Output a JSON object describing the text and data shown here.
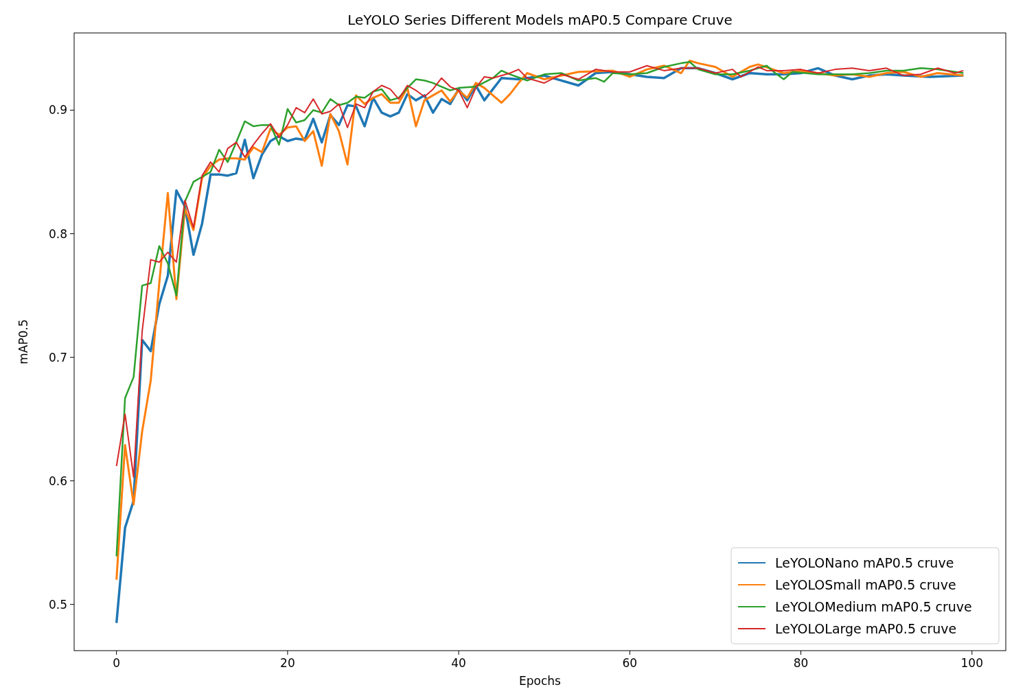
{
  "chart_data": {
    "type": "line",
    "title": "LeYOLO Series Different Models mAP0.5 Compare Cruve",
    "xlabel": "Epochs",
    "ylabel": "mAP0.5",
    "xlim": [
      -4.95,
      103.95
    ],
    "ylim": [
      0.4626,
      0.9625
    ],
    "xticks": [
      0,
      20,
      40,
      60,
      80,
      100
    ],
    "yticks": [
      0.5,
      0.6,
      0.7,
      0.8,
      0.9
    ],
    "grid": false,
    "legend": "bottom right",
    "marker": "none",
    "line_style": "solid",
    "series": [
      {
        "name": "LeYOLONano mAP0.5 cruve",
        "color": "#1f77b4",
        "x": [
          0,
          1,
          2,
          3,
          4,
          5,
          6,
          7,
          8,
          9,
          10,
          11,
          12,
          13,
          14,
          15,
          16,
          17,
          18,
          19,
          20,
          21,
          22,
          23,
          24,
          25,
          26,
          27,
          28,
          29,
          30,
          31,
          32,
          33,
          34,
          35,
          36,
          37,
          38,
          39,
          40,
          41,
          42,
          43,
          44,
          45,
          47,
          50,
          54,
          56,
          58,
          60,
          62,
          64,
          66,
          68,
          70,
          72,
          74,
          76,
          78,
          80,
          82,
          84,
          86,
          88,
          90,
          92,
          95,
          99
        ],
        "values": [
          0.485,
          0.562,
          0.584,
          0.714,
          0.705,
          0.743,
          0.766,
          0.835,
          0.822,
          0.783,
          0.808,
          0.848,
          0.848,
          0.847,
          0.849,
          0.876,
          0.845,
          0.864,
          0.875,
          0.879,
          0.875,
          0.877,
          0.876,
          0.893,
          0.874,
          0.896,
          0.888,
          0.904,
          0.903,
          0.887,
          0.91,
          0.898,
          0.895,
          0.898,
          0.913,
          0.908,
          0.912,
          0.898,
          0.909,
          0.905,
          0.917,
          0.908,
          0.92,
          0.908,
          0.917,
          0.926,
          0.925,
          0.928,
          0.92,
          0.93,
          0.931,
          0.929,
          0.927,
          0.926,
          0.934,
          0.934,
          0.93,
          0.925,
          0.93,
          0.929,
          0.929,
          0.93,
          0.934,
          0.928,
          0.925,
          0.928,
          0.929,
          0.928,
          0.927,
          0.928
        ]
      },
      {
        "name": "LeYOLOSmall mAP0.5 cruve",
        "color": "#ff7f0e",
        "x": [
          0,
          1,
          2,
          3,
          4,
          5,
          6,
          7,
          8,
          9,
          10,
          11,
          12,
          13,
          14,
          15,
          16,
          17,
          18,
          19,
          20,
          21,
          22,
          23,
          24,
          25,
          26,
          27,
          28,
          29,
          30,
          31,
          32,
          33,
          34,
          35,
          36,
          37,
          38,
          39,
          40,
          41,
          42,
          43,
          45,
          46,
          47,
          48,
          50,
          54,
          58,
          60,
          62,
          64,
          66,
          67,
          68,
          70,
          72,
          74,
          75,
          78,
          80,
          84,
          86,
          88,
          90,
          92,
          94,
          96,
          99
        ],
        "values": [
          0.52,
          0.629,
          0.581,
          0.64,
          0.681,
          0.76,
          0.833,
          0.747,
          0.82,
          0.803,
          0.845,
          0.855,
          0.86,
          0.861,
          0.861,
          0.86,
          0.87,
          0.866,
          0.885,
          0.88,
          0.886,
          0.887,
          0.875,
          0.883,
          0.855,
          0.897,
          0.883,
          0.856,
          0.912,
          0.905,
          0.91,
          0.913,
          0.906,
          0.906,
          0.918,
          0.887,
          0.908,
          0.912,
          0.916,
          0.907,
          0.916,
          0.91,
          0.922,
          0.918,
          0.906,
          0.913,
          0.922,
          0.93,
          0.925,
          0.931,
          0.932,
          0.927,
          0.933,
          0.936,
          0.93,
          0.94,
          0.938,
          0.935,
          0.927,
          0.935,
          0.937,
          0.93,
          0.932,
          0.928,
          0.929,
          0.927,
          0.93,
          0.931,
          0.927,
          0.93,
          0.928
        ]
      },
      {
        "name": "LeYOLOMedium mAP0.5 cruve",
        "color": "#2ca02c",
        "x": [
          0,
          1,
          2,
          3,
          4,
          5,
          6,
          7,
          8,
          9,
          10,
          11,
          12,
          13,
          14,
          15,
          16,
          17,
          18,
          19,
          20,
          21,
          22,
          23,
          24,
          25,
          26,
          27,
          28,
          29,
          30,
          31,
          32,
          33,
          34,
          35,
          36,
          37,
          38,
          39,
          40,
          42,
          44,
          45,
          46,
          48,
          50,
          52,
          54,
          56,
          57,
          58,
          60,
          62,
          64,
          66,
          67,
          68,
          70,
          72,
          74,
          76,
          77,
          78,
          79,
          82,
          86,
          88,
          90,
          92,
          94,
          96,
          99
        ],
        "values": [
          0.539,
          0.667,
          0.684,
          0.758,
          0.76,
          0.79,
          0.776,
          0.75,
          0.826,
          0.842,
          0.846,
          0.85,
          0.868,
          0.858,
          0.874,
          0.891,
          0.887,
          0.888,
          0.888,
          0.872,
          0.901,
          0.89,
          0.892,
          0.9,
          0.898,
          0.909,
          0.904,
          0.906,
          0.911,
          0.91,
          0.915,
          0.917,
          0.908,
          0.91,
          0.918,
          0.925,
          0.924,
          0.922,
          0.919,
          0.916,
          0.918,
          0.919,
          0.926,
          0.932,
          0.929,
          0.924,
          0.929,
          0.93,
          0.924,
          0.926,
          0.923,
          0.93,
          0.929,
          0.93,
          0.935,
          0.938,
          0.939,
          0.933,
          0.929,
          0.929,
          0.932,
          0.936,
          0.93,
          0.925,
          0.931,
          0.929,
          0.929,
          0.93,
          0.932,
          0.932,
          0.934,
          0.933,
          0.93
        ]
      },
      {
        "name": "LeYOLOLarge mAP0.5 cruve",
        "color": "#d62728",
        "x": [
          0,
          1,
          2,
          3,
          4,
          5,
          6,
          7,
          8,
          9,
          10,
          11,
          12,
          13,
          14,
          15,
          16,
          17,
          18,
          19,
          20,
          21,
          22,
          23,
          24,
          25,
          26,
          27,
          28,
          29,
          30,
          31,
          32,
          33,
          34,
          35,
          36,
          37,
          38,
          39,
          40,
          41,
          42,
          43,
          44,
          46,
          47,
          48,
          50,
          52,
          54,
          56,
          58,
          60,
          62,
          64,
          66,
          68,
          70,
          72,
          73,
          75,
          76,
          78,
          80,
          82,
          84,
          86,
          88,
          90,
          92,
          94,
          96,
          98,
          99
        ],
        "values": [
          0.612,
          0.654,
          0.603,
          0.721,
          0.779,
          0.777,
          0.785,
          0.777,
          0.827,
          0.805,
          0.847,
          0.858,
          0.85,
          0.869,
          0.874,
          0.862,
          0.872,
          0.881,
          0.889,
          0.878,
          0.888,
          0.902,
          0.898,
          0.909,
          0.897,
          0.899,
          0.905,
          0.886,
          0.905,
          0.902,
          0.915,
          0.92,
          0.917,
          0.909,
          0.92,
          0.916,
          0.911,
          0.917,
          0.926,
          0.919,
          0.916,
          0.902,
          0.918,
          0.927,
          0.926,
          0.93,
          0.933,
          0.926,
          0.922,
          0.929,
          0.925,
          0.933,
          0.931,
          0.931,
          0.936,
          0.932,
          0.934,
          0.934,
          0.93,
          0.933,
          0.927,
          0.935,
          0.932,
          0.932,
          0.933,
          0.93,
          0.933,
          0.934,
          0.932,
          0.934,
          0.928,
          0.929,
          0.934,
          0.93,
          0.932
        ]
      }
    ]
  }
}
